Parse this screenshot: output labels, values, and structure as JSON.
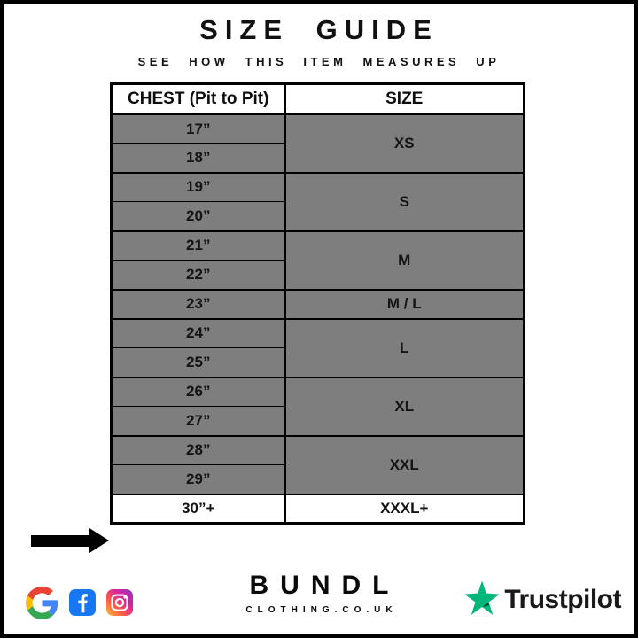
{
  "header": {
    "title": "SIZE GUIDE",
    "subtitle": "SEE HOW THIS ITEM MEASURES UP"
  },
  "table": {
    "columns": [
      "CHEST (Pit to Pit)",
      "SIZE"
    ],
    "groups": [
      {
        "measurements": [
          "17”",
          "18”"
        ],
        "size": "XS",
        "highlighted": false
      },
      {
        "measurements": [
          "19”",
          "20”"
        ],
        "size": "S",
        "highlighted": false
      },
      {
        "measurements": [
          "21”",
          "22”"
        ],
        "size": "M",
        "highlighted": false
      },
      {
        "measurements": [
          "23”"
        ],
        "size": "M / L",
        "highlighted": false
      },
      {
        "measurements": [
          "24”",
          "25”"
        ],
        "size": "L",
        "highlighted": false
      },
      {
        "measurements": [
          "26”",
          "27”"
        ],
        "size": "XL",
        "highlighted": false
      },
      {
        "measurements": [
          "28”",
          "29”"
        ],
        "size": "XXL",
        "highlighted": false
      },
      {
        "measurements": [
          "30”+"
        ],
        "size": "XXXL+",
        "highlighted": true
      }
    ],
    "colors": {
      "cell_bg": "#7e7e7e",
      "highlight_bg": "#ffffff",
      "border": "#000000"
    }
  },
  "arrow": {
    "icon": "right-arrow-icon",
    "color": "#000000",
    "points_to": "30”+ / XXXL+ row"
  },
  "footer": {
    "brand": {
      "name": "BUNDL",
      "domain": "CLOTHING.CO.UK"
    },
    "social_icons": [
      "google-icon",
      "facebook-icon",
      "instagram-icon"
    ],
    "icon_colors": {
      "google_blue": "#4285F4",
      "google_red": "#EA4335",
      "google_yellow": "#FBBC05",
      "google_green": "#34A853",
      "facebook_blue": "#1877F2",
      "instagram_gradient": [
        "#fdbd32",
        "#fd5949",
        "#d6249f",
        "#8a3ab9"
      ]
    },
    "trustpilot": {
      "label": "Trustpilot",
      "star_color": "#00B67A",
      "star_shade": "#005128",
      "text_color": "#191919"
    }
  },
  "chart_data": {
    "type": "table",
    "title": "SIZE GUIDE",
    "subtitle": "SEE HOW THIS ITEM MEASURES UP",
    "columns": [
      "CHEST (Pit to Pit)",
      "SIZE"
    ],
    "rows": [
      [
        "17”",
        "XS"
      ],
      [
        "18”",
        "XS"
      ],
      [
        "19”",
        "S"
      ],
      [
        "20”",
        "S"
      ],
      [
        "21”",
        "M"
      ],
      [
        "22”",
        "M"
      ],
      [
        "23”",
        "M / L"
      ],
      [
        "24”",
        "L"
      ],
      [
        "25”",
        "L"
      ],
      [
        "26”",
        "XL"
      ],
      [
        "27”",
        "XL"
      ],
      [
        "28”",
        "XXL"
      ],
      [
        "29”",
        "XXL"
      ],
      [
        "30”+",
        "XXXL+"
      ]
    ],
    "highlighted_row": [
      "30”+",
      "XXXL+"
    ],
    "layout_hints": {
      "merged_size_cells": true,
      "grid": "on",
      "body_background": "#7e7e7e",
      "highlight_background": "#ffffff"
    }
  }
}
